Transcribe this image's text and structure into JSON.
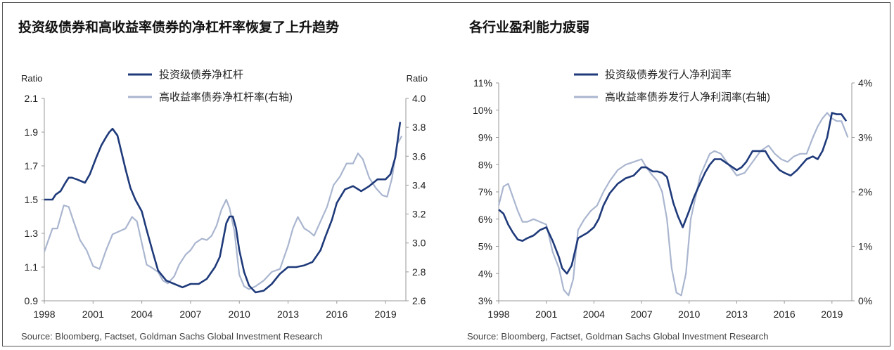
{
  "chart_data": [
    {
      "type": "line",
      "title": "投资级债券和高收益率债券的净杠杆率恢复了上升趋势",
      "left_axis_title": "Ratio",
      "right_axis_title": "Ratio",
      "ylim_left": [
        0.9,
        2.1
      ],
      "yticks_left": [
        "2.1",
        "1.9",
        "1.7",
        "1.5",
        "1.3",
        "1.1",
        "0.9"
      ],
      "ylim_right": [
        2.6,
        4.0
      ],
      "yticks_right": [
        "4.0",
        "3.8",
        "3.6",
        "3.4",
        "3.2",
        "3.0",
        "2.8",
        "2.6"
      ],
      "xlim": [
        1998,
        2020.25
      ],
      "xticks": [
        "1998",
        "2001",
        "2004",
        "2007",
        "2010",
        "2013",
        "2016",
        "2019"
      ],
      "grid": false,
      "legend_position": "top-center",
      "series": [
        {
          "name": "投资级债券净杠杆",
          "axis": "left",
          "color": "#1f3a7a",
          "x": [
            1998,
            1998.5,
            1998.7,
            1999,
            1999.3,
            1999.5,
            1999.7,
            2000,
            2000.5,
            2000.8,
            2001.2,
            2001.5,
            2001.8,
            2002,
            2002.2,
            2002.5,
            2003,
            2003.3,
            2003.6,
            2004,
            2004.3,
            2004.7,
            2005,
            2005.5,
            2006,
            2006.5,
            2007,
            2007.5,
            2008,
            2008.5,
            2008.8,
            2009,
            2009.2,
            2009.4,
            2009.6,
            2009.8,
            2010,
            2010.3,
            2010.6,
            2011,
            2011.5,
            2012,
            2012.5,
            2013,
            2013.5,
            2014,
            2014.5,
            2015,
            2015.3,
            2015.7,
            2016,
            2016.5,
            2017,
            2017.5,
            2018,
            2018.5,
            2019,
            2019.3,
            2019.6,
            2019.9
          ],
          "y": [
            1.5,
            1.5,
            1.53,
            1.55,
            1.6,
            1.63,
            1.63,
            1.62,
            1.6,
            1.65,
            1.75,
            1.82,
            1.87,
            1.9,
            1.92,
            1.88,
            1.68,
            1.57,
            1.5,
            1.43,
            1.32,
            1.18,
            1.08,
            1.02,
            1.0,
            0.98,
            1.0,
            1.0,
            1.03,
            1.1,
            1.16,
            1.26,
            1.36,
            1.4,
            1.4,
            1.33,
            1.2,
            1.07,
            0.99,
            0.95,
            0.96,
            1.0,
            1.06,
            1.1,
            1.1,
            1.11,
            1.13,
            1.2,
            1.28,
            1.38,
            1.48,
            1.56,
            1.58,
            1.55,
            1.58,
            1.62,
            1.62,
            1.65,
            1.75,
            1.96
          ]
        },
        {
          "name": "高收益率债券净杠杆率(右轴)",
          "axis": "right",
          "color": "#aab6cf",
          "x": [
            1998,
            1998.5,
            1998.8,
            1999.2,
            1999.5,
            1999.8,
            2000.2,
            2000.6,
            2001,
            2001.4,
            2001.8,
            2002.2,
            2002.6,
            2003,
            2003.4,
            2003.7,
            2004,
            2004.3,
            2004.6,
            2005,
            2005.3,
            2005.6,
            2006,
            2006.3,
            2006.7,
            2007,
            2007.3,
            2007.7,
            2008,
            2008.3,
            2008.6,
            2008.9,
            2009.2,
            2009.4,
            2009.7,
            2010,
            2010.3,
            2010.6,
            2011,
            2011.5,
            2012,
            2012.5,
            2013,
            2013.3,
            2013.6,
            2014,
            2014.3,
            2014.6,
            2015,
            2015.4,
            2015.8,
            2016.2,
            2016.6,
            2017,
            2017.3,
            2017.6,
            2018,
            2018.4,
            2018.8,
            2019.1,
            2019.4,
            2019.7,
            2020
          ],
          "y": [
            2.94,
            3.1,
            3.1,
            3.26,
            3.25,
            3.15,
            3.02,
            2.95,
            2.84,
            2.82,
            2.95,
            3.06,
            3.08,
            3.1,
            3.18,
            3.15,
            3.0,
            2.85,
            2.83,
            2.8,
            2.74,
            2.72,
            2.77,
            2.85,
            2.92,
            2.95,
            3.0,
            3.03,
            3.02,
            3.05,
            3.12,
            3.23,
            3.3,
            3.24,
            3.08,
            2.78,
            2.7,
            2.68,
            2.7,
            2.74,
            2.8,
            2.82,
            2.98,
            3.1,
            3.18,
            3.1,
            3.08,
            3.05,
            3.15,
            3.25,
            3.4,
            3.46,
            3.55,
            3.55,
            3.62,
            3.58,
            3.45,
            3.38,
            3.33,
            3.32,
            3.45,
            3.68,
            3.74
          ]
        }
      ]
    },
    {
      "type": "line",
      "title": "各行业盈利能力疲弱",
      "ylim_left": [
        3,
        11
      ],
      "yticks_left": [
        "11%",
        "10%",
        "9%",
        "8%",
        "7%",
        "6%",
        "5%",
        "4%",
        "3%"
      ],
      "ylim_right": [
        0,
        4
      ],
      "yticks_right": [
        "4%",
        "3%",
        "2%",
        "1%",
        "0%"
      ],
      "xlim": [
        1998,
        2020.25
      ],
      "xticks": [
        "1998",
        "2001",
        "2004",
        "2007",
        "2010",
        "2013",
        "2016",
        "2019"
      ],
      "grid": false,
      "legend_position": "top-center",
      "series": [
        {
          "name": "投资级债券发行人净利润率",
          "axis": "left",
          "color": "#1f3a7a",
          "x": [
            1998,
            1998.3,
            1998.6,
            1998.9,
            1999.2,
            1999.5,
            1999.8,
            2000.2,
            2000.6,
            2001,
            2001.4,
            2001.8,
            2002,
            2002.3,
            2002.6,
            2003,
            2003.3,
            2003.6,
            2004,
            2004.3,
            2004.6,
            2005,
            2005.5,
            2006,
            2006.5,
            2007,
            2007.3,
            2007.7,
            2008,
            2008.3,
            2008.6,
            2009,
            2009.3,
            2009.6,
            2010,
            2010.3,
            2010.6,
            2011,
            2011.3,
            2011.6,
            2012,
            2012.5,
            2013,
            2013.3,
            2013.6,
            2014,
            2014.4,
            2014.8,
            2015.1,
            2015.4,
            2015.7,
            2016,
            2016.4,
            2016.8,
            2017.1,
            2017.4,
            2017.8,
            2018.1,
            2018.4,
            2018.7,
            2019,
            2019.3,
            2019.6,
            2019.9
          ],
          "y": [
            6.35,
            6.2,
            5.8,
            5.5,
            5.25,
            5.2,
            5.3,
            5.4,
            5.6,
            5.7,
            5.2,
            4.6,
            4.2,
            4.0,
            4.3,
            5.3,
            5.4,
            5.5,
            5.7,
            6.0,
            6.5,
            6.95,
            7.3,
            7.5,
            7.6,
            7.9,
            7.9,
            7.75,
            7.75,
            7.7,
            7.55,
            6.6,
            6.1,
            5.7,
            6.3,
            6.8,
            7.2,
            7.7,
            8.0,
            8.2,
            8.2,
            8.0,
            7.8,
            7.9,
            8.1,
            8.5,
            8.5,
            8.5,
            8.2,
            8.0,
            7.8,
            7.7,
            7.6,
            7.8,
            8.0,
            8.2,
            8.3,
            8.2,
            8.5,
            9.0,
            9.9,
            9.85,
            9.85,
            9.6
          ]
        },
        {
          "name": "高收益率债券发行人净利润率(右轴)",
          "axis": "right",
          "color": "#aab6cf",
          "x": [
            1998,
            1998.3,
            1998.6,
            1998.9,
            1999.2,
            1999.5,
            1999.8,
            2000.2,
            2000.6,
            2001,
            2001.4,
            2001.8,
            2002.1,
            2002.4,
            2002.7,
            2003,
            2003.4,
            2003.8,
            2004.2,
            2004.6,
            2005,
            2005.5,
            2006,
            2006.5,
            2007,
            2007.3,
            2007.7,
            2008,
            2008.3,
            2008.6,
            2008.9,
            2009.2,
            2009.5,
            2009.8,
            2010.1,
            2010.4,
            2010.7,
            2011,
            2011.3,
            2011.6,
            2012,
            2012.5,
            2013,
            2013.5,
            2014,
            2014.5,
            2015,
            2015.4,
            2015.8,
            2016.2,
            2016.6,
            2017,
            2017.4,
            2017.8,
            2018.1,
            2018.4,
            2018.7,
            2019,
            2019.3,
            2019.6,
            2020
          ],
          "y": [
            1.75,
            2.1,
            2.15,
            1.9,
            1.65,
            1.45,
            1.45,
            1.5,
            1.45,
            1.4,
            0.9,
            0.6,
            0.2,
            0.1,
            0.4,
            1.3,
            1.5,
            1.65,
            1.75,
            2.0,
            2.2,
            2.4,
            2.5,
            2.55,
            2.6,
            2.45,
            2.3,
            2.2,
            2.0,
            1.5,
            0.6,
            0.15,
            0.1,
            0.5,
            1.5,
            1.9,
            2.3,
            2.5,
            2.7,
            2.75,
            2.7,
            2.5,
            2.3,
            2.35,
            2.55,
            2.75,
            2.85,
            2.7,
            2.6,
            2.55,
            2.65,
            2.7,
            2.7,
            3.0,
            3.2,
            3.35,
            3.45,
            3.35,
            3.3,
            3.3,
            3.0
          ]
        }
      ]
    }
  ],
  "source_left": "Source: Bloomberg, Factset, Goldman Sachs Global Investment Research",
  "source_right": "Source: Bloomberg, Factset, Goldman Sachs Global Investment Research"
}
